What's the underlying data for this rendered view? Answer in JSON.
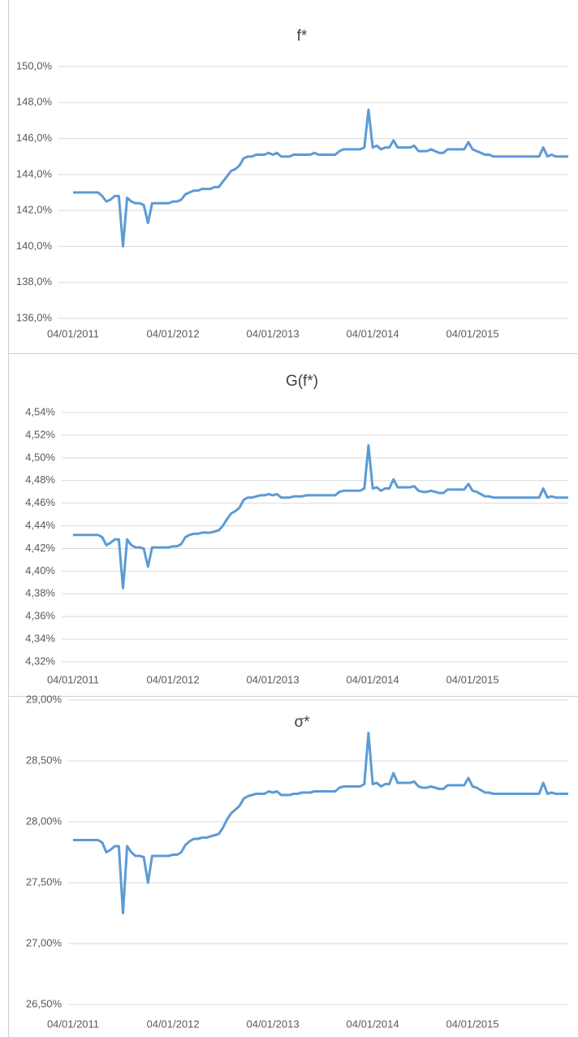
{
  "chart_data": [
    {
      "type": "line",
      "title": "f*",
      "color": "#5b9bd5",
      "categories": [
        "04/01/2011",
        null,
        null,
        null,
        null,
        null,
        null,
        null,
        null,
        null,
        null,
        null,
        null,
        null,
        null,
        null,
        null,
        null,
        null,
        null,
        null,
        null,
        null,
        null,
        "04/01/2012",
        null,
        null,
        null,
        null,
        null,
        null,
        null,
        null,
        null,
        null,
        null,
        null,
        null,
        null,
        null,
        null,
        null,
        null,
        null,
        null,
        null,
        null,
        null,
        "04/01/2013",
        null,
        null,
        null,
        null,
        null,
        null,
        null,
        null,
        null,
        null,
        null,
        null,
        null,
        null,
        null,
        null,
        null,
        null,
        null,
        null,
        null,
        null,
        null,
        "04/01/2014",
        null,
        null,
        null,
        null,
        null,
        null,
        null,
        null,
        null,
        null,
        null,
        null,
        null,
        null,
        null,
        null,
        null,
        null,
        null,
        null,
        null,
        null,
        null,
        "04/01/2015",
        null,
        null,
        null,
        null,
        null,
        null,
        null,
        null,
        null,
        null,
        null,
        null,
        null,
        null,
        null,
        null,
        null,
        null,
        null,
        null,
        null,
        null,
        null
      ],
      "values": [
        143.0,
        143.0,
        143.0,
        143.0,
        143.0,
        143.0,
        143.0,
        142.8,
        142.5,
        142.6,
        142.8,
        142.8,
        140.0,
        142.7,
        142.5,
        142.4,
        142.4,
        142.3,
        141.3,
        142.4,
        142.4,
        142.4,
        142.4,
        142.4,
        142.5,
        142.5,
        142.6,
        142.9,
        143.0,
        143.1,
        143.1,
        143.2,
        143.2,
        143.2,
        143.3,
        143.3,
        143.6,
        143.9,
        144.2,
        144.3,
        144.5,
        144.9,
        145.0,
        145.0,
        145.1,
        145.1,
        145.1,
        145.2,
        145.1,
        145.2,
        145.0,
        145.0,
        145.0,
        145.1,
        145.1,
        145.1,
        145.1,
        145.1,
        145.2,
        145.1,
        145.1,
        145.1,
        145.1,
        145.1,
        145.3,
        145.4,
        145.4,
        145.4,
        145.4,
        145.4,
        145.5,
        147.6,
        145.5,
        145.6,
        145.4,
        145.5,
        145.5,
        145.9,
        145.5,
        145.5,
        145.5,
        145.5,
        145.6,
        145.3,
        145.3,
        145.3,
        145.4,
        145.3,
        145.2,
        145.2,
        145.4,
        145.4,
        145.4,
        145.4,
        145.4,
        145.8,
        145.4,
        145.3,
        145.2,
        145.1,
        145.1,
        145.0,
        145.0,
        145.0,
        145.0,
        145.0,
        145.0,
        145.0,
        145.0,
        145.0,
        145.0,
        145.0,
        145.0,
        145.5,
        145.0,
        145.1,
        145.0,
        145.0,
        145.0,
        145.0
      ],
      "ylim": [
        136,
        150
      ],
      "yticks": [
        {
          "value": 136,
          "label": "136,0%"
        },
        {
          "value": 138,
          "label": "138,0%"
        },
        {
          "value": 140,
          "label": "140,0%"
        },
        {
          "value": 142,
          "label": "142,0%"
        },
        {
          "value": 144,
          "label": "144,0%"
        },
        {
          "value": 146,
          "label": "146,0%"
        },
        {
          "value": 148,
          "label": "148,0%"
        },
        {
          "value": 150,
          "label": "150,0%"
        }
      ],
      "grid": true
    },
    {
      "type": "line",
      "title": "G(f*)",
      "color": "#5b9bd5",
      "categories": [
        "04/01/2011",
        null,
        null,
        null,
        null,
        null,
        null,
        null,
        null,
        null,
        null,
        null,
        null,
        null,
        null,
        null,
        null,
        null,
        null,
        null,
        null,
        null,
        null,
        null,
        "04/01/2012",
        null,
        null,
        null,
        null,
        null,
        null,
        null,
        null,
        null,
        null,
        null,
        null,
        null,
        null,
        null,
        null,
        null,
        null,
        null,
        null,
        null,
        null,
        null,
        "04/01/2013",
        null,
        null,
        null,
        null,
        null,
        null,
        null,
        null,
        null,
        null,
        null,
        null,
        null,
        null,
        null,
        null,
        null,
        null,
        null,
        null,
        null,
        null,
        null,
        "04/01/2014",
        null,
        null,
        null,
        null,
        null,
        null,
        null,
        null,
        null,
        null,
        null,
        null,
        null,
        null,
        null,
        null,
        null,
        null,
        null,
        null,
        null,
        null,
        null,
        "04/01/2015",
        null,
        null,
        null,
        null,
        null,
        null,
        null,
        null,
        null,
        null,
        null,
        null,
        null,
        null,
        null,
        null,
        null,
        null,
        null,
        null,
        null,
        null,
        null
      ],
      "values": [
        4.432,
        4.432,
        4.432,
        4.432,
        4.432,
        4.432,
        4.432,
        4.43,
        4.423,
        4.425,
        4.428,
        4.428,
        4.385,
        4.428,
        4.423,
        4.421,
        4.421,
        4.42,
        4.404,
        4.421,
        4.421,
        4.421,
        4.421,
        4.421,
        4.422,
        4.422,
        4.424,
        4.43,
        4.432,
        4.433,
        4.433,
        4.434,
        4.434,
        4.434,
        4.435,
        4.436,
        4.44,
        4.446,
        4.451,
        4.453,
        4.456,
        4.463,
        4.465,
        4.465,
        4.466,
        4.467,
        4.467,
        4.468,
        4.467,
        4.468,
        4.465,
        4.465,
        4.465,
        4.466,
        4.466,
        4.466,
        4.467,
        4.467,
        4.467,
        4.467,
        4.467,
        4.467,
        4.467,
        4.467,
        4.47,
        4.471,
        4.471,
        4.471,
        4.471,
        4.471,
        4.473,
        4.511,
        4.473,
        4.474,
        4.471,
        4.473,
        4.473,
        4.481,
        4.474,
        4.474,
        4.474,
        4.474,
        4.475,
        4.471,
        4.47,
        4.47,
        4.471,
        4.47,
        4.469,
        4.469,
        4.472,
        4.472,
        4.472,
        4.472,
        4.472,
        4.477,
        4.471,
        4.47,
        4.468,
        4.466,
        4.466,
        4.465,
        4.465,
        4.465,
        4.465,
        4.465,
        4.465,
        4.465,
        4.465,
        4.465,
        4.465,
        4.465,
        4.465,
        4.473,
        4.465,
        4.466,
        4.465,
        4.465,
        4.465,
        4.465
      ],
      "ylim": [
        4.32,
        4.54
      ],
      "yticks": [
        {
          "value": 4.32,
          "label": "4,32%"
        },
        {
          "value": 4.34,
          "label": "4,34%"
        },
        {
          "value": 4.36,
          "label": "4,36%"
        },
        {
          "value": 4.38,
          "label": "4,38%"
        },
        {
          "value": 4.4,
          "label": "4,40%"
        },
        {
          "value": 4.42,
          "label": "4,42%"
        },
        {
          "value": 4.44,
          "label": "4,44%"
        },
        {
          "value": 4.46,
          "label": "4,46%"
        },
        {
          "value": 4.48,
          "label": "4,48%"
        },
        {
          "value": 4.5,
          "label": "4,50%"
        },
        {
          "value": 4.52,
          "label": "4,52%"
        },
        {
          "value": 4.54,
          "label": "4,54%"
        }
      ],
      "grid": true
    },
    {
      "type": "line",
      "title": "σ*",
      "color": "#5b9bd5",
      "categories": [
        "04/01/2011",
        null,
        null,
        null,
        null,
        null,
        null,
        null,
        null,
        null,
        null,
        null,
        null,
        null,
        null,
        null,
        null,
        null,
        null,
        null,
        null,
        null,
        null,
        null,
        "04/01/2012",
        null,
        null,
        null,
        null,
        null,
        null,
        null,
        null,
        null,
        null,
        null,
        null,
        null,
        null,
        null,
        null,
        null,
        null,
        null,
        null,
        null,
        null,
        null,
        "04/01/2013",
        null,
        null,
        null,
        null,
        null,
        null,
        null,
        null,
        null,
        null,
        null,
        null,
        null,
        null,
        null,
        null,
        null,
        null,
        null,
        null,
        null,
        null,
        null,
        "04/01/2014",
        null,
        null,
        null,
        null,
        null,
        null,
        null,
        null,
        null,
        null,
        null,
        null,
        null,
        null,
        null,
        null,
        null,
        null,
        null,
        null,
        null,
        null,
        null,
        "04/01/2015",
        null,
        null,
        null,
        null,
        null,
        null,
        null,
        null,
        null,
        null,
        null,
        null,
        null,
        null,
        null,
        null,
        null,
        null,
        null,
        null,
        null,
        null,
        null
      ],
      "values": [
        27.85,
        27.85,
        27.85,
        27.85,
        27.85,
        27.85,
        27.85,
        27.83,
        27.75,
        27.77,
        27.8,
        27.8,
        27.25,
        27.8,
        27.75,
        27.72,
        27.72,
        27.71,
        27.5,
        27.72,
        27.72,
        27.72,
        27.72,
        27.72,
        27.73,
        27.73,
        27.75,
        27.81,
        27.84,
        27.86,
        27.86,
        27.87,
        27.87,
        27.88,
        27.89,
        27.9,
        27.95,
        28.02,
        28.07,
        28.1,
        28.13,
        28.19,
        28.21,
        28.22,
        28.23,
        28.23,
        28.23,
        28.25,
        28.24,
        28.25,
        28.22,
        28.22,
        28.22,
        28.23,
        28.23,
        28.24,
        28.24,
        28.24,
        28.25,
        28.25,
        28.25,
        28.25,
        28.25,
        28.25,
        28.28,
        28.29,
        28.29,
        28.29,
        28.29,
        28.29,
        28.31,
        28.73,
        28.31,
        28.32,
        28.29,
        28.31,
        28.31,
        28.4,
        28.32,
        28.32,
        28.32,
        28.32,
        28.33,
        28.29,
        28.28,
        28.28,
        28.29,
        28.28,
        28.27,
        28.27,
        28.3,
        28.3,
        28.3,
        28.3,
        28.3,
        28.36,
        28.29,
        28.28,
        28.26,
        28.24,
        28.24,
        28.23,
        28.23,
        28.23,
        28.23,
        28.23,
        28.23,
        28.23,
        28.23,
        28.23,
        28.23,
        28.23,
        28.23,
        28.32,
        28.23,
        28.24,
        28.23,
        28.23,
        28.23,
        28.23
      ],
      "ylim": [
        26.5,
        29.0
      ],
      "yticks": [
        {
          "value": 26.5,
          "label": "26,50%"
        },
        {
          "value": 27.0,
          "label": "27,00%"
        },
        {
          "value": 27.5,
          "label": "27,50%"
        },
        {
          "value": 28.0,
          "label": "28,00%"
        },
        {
          "value": 28.5,
          "label": "28,50%"
        },
        {
          "value": 29.0,
          "label": "29,00%"
        }
      ],
      "grid": true
    }
  ]
}
